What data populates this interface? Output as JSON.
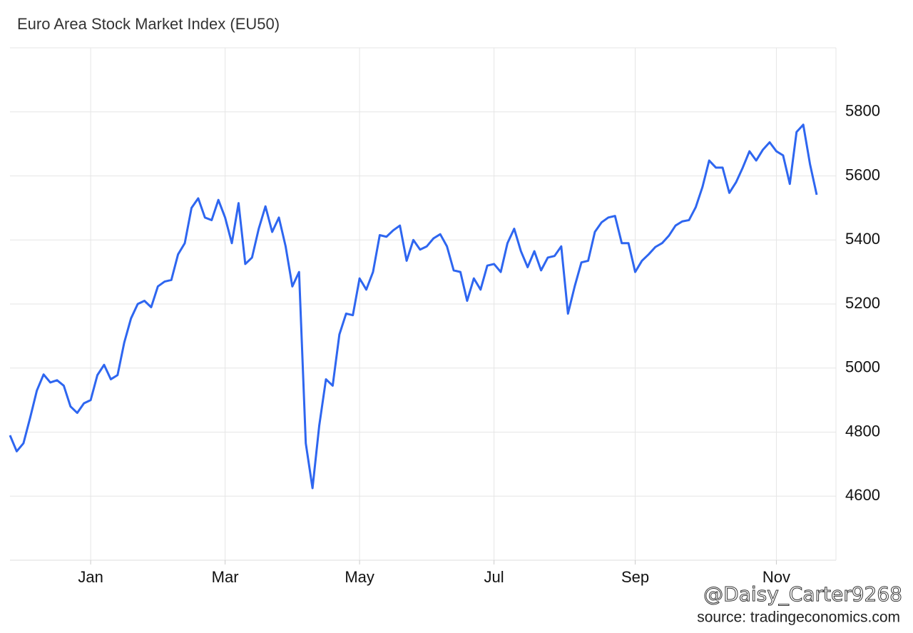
{
  "chart_data": {
    "type": "line",
    "title": "Euro Area Stock Market Index (EU50)",
    "categories": [
      null,
      null,
      null,
      null,
      null,
      null,
      null,
      null,
      null,
      null,
      null,
      null,
      "Jan",
      null,
      null,
      null,
      null,
      null,
      null,
      null,
      null,
      null,
      null,
      null,
      null,
      null,
      null,
      null,
      null,
      null,
      null,
      null,
      "Mar",
      null,
      null,
      null,
      null,
      null,
      null,
      null,
      null,
      null,
      null,
      null,
      null,
      null,
      null,
      null,
      null,
      null,
      null,
      null,
      "May",
      null,
      null,
      null,
      null,
      null,
      null,
      null,
      null,
      null,
      null,
      null,
      null,
      null,
      null,
      null,
      null,
      null,
      null,
      null,
      "Jul",
      null,
      null,
      null,
      null,
      null,
      null,
      null,
      null,
      null,
      null,
      null,
      null,
      null,
      null,
      null,
      null,
      null,
      null,
      null,
      null,
      "Sep",
      null,
      null,
      null,
      null,
      null,
      null,
      null,
      null,
      null,
      null,
      null,
      null,
      null,
      null,
      null,
      null,
      null,
      null,
      null,
      null,
      "Nov",
      null,
      null,
      null,
      null,
      null,
      null
    ],
    "series": [
      {
        "name": "EU50",
        "color": "#2e66f0",
        "values": [
          4790,
          4740,
          4765,
          4845,
          4930,
          4980,
          4955,
          4962,
          4945,
          4880,
          4860,
          4890,
          4900,
          4978,
          5010,
          4965,
          4978,
          5080,
          5155,
          5200,
          5210,
          5190,
          5255,
          5270,
          5275,
          5355,
          5390,
          5500,
          5530,
          5470,
          5462,
          5525,
          5470,
          5390,
          5515,
          5325,
          5345,
          5435,
          5505,
          5425,
          5470,
          5380,
          5255,
          5300,
          4765,
          4625,
          4820,
          4965,
          4945,
          5105,
          5170,
          5165,
          5280,
          5245,
          5300,
          5415,
          5410,
          5430,
          5445,
          5335,
          5400,
          5370,
          5380,
          5405,
          5418,
          5380,
          5305,
          5300,
          5210,
          5280,
          5245,
          5320,
          5325,
          5300,
          5390,
          5435,
          5365,
          5315,
          5365,
          5305,
          5345,
          5350,
          5380,
          5170,
          5255,
          5330,
          5335,
          5425,
          5455,
          5470,
          5475,
          5390,
          5390,
          5300,
          5335,
          5355,
          5378,
          5390,
          5413,
          5445,
          5458,
          5462,
          5502,
          5565,
          5648,
          5626,
          5626,
          5547,
          5580,
          5626,
          5677,
          5648,
          5682,
          5705,
          5677,
          5664,
          5575,
          5737,
          5760,
          5637,
          5541
        ]
      }
    ],
    "ylim": [
      4400,
      6000
    ],
    "yticks": [
      4600,
      4800,
      5000,
      5200,
      5400,
      5600,
      5800
    ],
    "grid": true,
    "watermark": "@Daisy_Carter9268",
    "source": "source: tradingeconomics.com"
  }
}
